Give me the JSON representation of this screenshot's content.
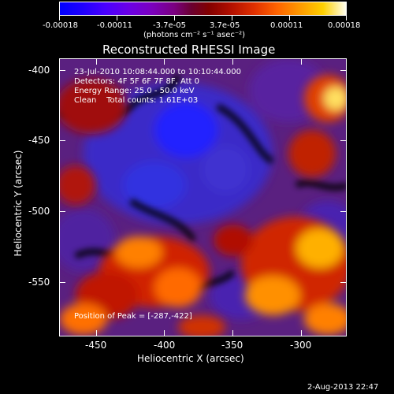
{
  "colorbar": {
    "ticks": [
      "-0.00018",
      "-0.00011",
      "-3.7e-05",
      "3.7e-05",
      "0.00011",
      "0.00018"
    ],
    "unit_label": "(photons cm⁻² s⁻¹ asec⁻²)"
  },
  "plot": {
    "title": "Reconstructed RHESSI Image",
    "xlabel": "Heliocentric X (arcsec)",
    "ylabel": "Heliocentric Y (arcsec)",
    "xticks": [
      "-450",
      "-400",
      "-350",
      "-300"
    ],
    "yticks": [
      "-400",
      "-450",
      "-500",
      "-550"
    ],
    "info": {
      "time_range": "23-Jul-2010 10:08:44.000 to 10:10:44.000",
      "detectors": "Detectors: 4F 5F 6F 7F 8F, Att 0",
      "energy": "Energy Range: 25.0 - 50.0 keV",
      "clean": "Clean    Total counts: 1.61E+03"
    },
    "peak": "Position of Peak = [-287,-422]"
  },
  "footer": {
    "date": "2-Aug-2013 22:47"
  }
}
